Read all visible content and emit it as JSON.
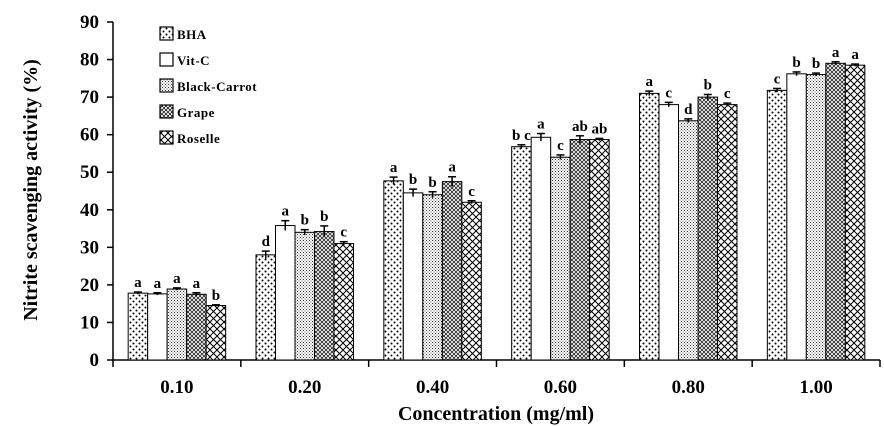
{
  "chart_data": {
    "type": "bar",
    "title": "",
    "xlabel": "Concentration (mg/ml)",
    "ylabel": "Nitrite scavenging activity (%)",
    "ylim": [
      0,
      90
    ],
    "yticks": [
      "0",
      "10",
      "20",
      "30",
      "40",
      "50",
      "60",
      "70",
      "80",
      "90"
    ],
    "categories": [
      "0.10",
      "0.20",
      "0.40",
      "0.60",
      "0.80",
      "1.00"
    ],
    "legend_position": "top-left",
    "series": [
      {
        "name": "BHA",
        "pattern": "dots",
        "values": [
          17.8,
          28.0,
          47.7,
          56.8,
          71.0,
          71.8
        ],
        "errors": [
          0.3,
          1.0,
          1.0,
          0.5,
          0.6,
          0.5
        ],
        "labels": [
          "a",
          "d",
          "a",
          "b c",
          "a",
          "c"
        ]
      },
      {
        "name": "Vit-C",
        "pattern": "blank",
        "values": [
          17.6,
          35.8,
          44.5,
          59.3,
          68.0,
          76.2
        ],
        "errors": [
          0.3,
          1.3,
          1.0,
          1.0,
          0.6,
          0.5
        ],
        "labels": [
          "a",
          "a",
          "b",
          "a",
          "c",
          "b"
        ]
      },
      {
        "name": "Black-Carrot",
        "pattern": "grid",
        "values": [
          18.9,
          34.0,
          44.0,
          54.0,
          63.7,
          76.0
        ],
        "errors": [
          0.3,
          0.7,
          0.8,
          0.6,
          0.5,
          0.4
        ],
        "labels": [
          "a",
          "b",
          "b",
          "c",
          "d",
          "b"
        ]
      },
      {
        "name": "Grape",
        "pattern": "crosshatch",
        "values": [
          17.5,
          34.2,
          47.5,
          58.7,
          70.0,
          79.0
        ],
        "errors": [
          0.4,
          1.5,
          1.3,
          1.0,
          0.7,
          0.4
        ],
        "labels": [
          "a",
          "b",
          "a",
          "ab",
          "b",
          "a"
        ]
      },
      {
        "name": "Roselle",
        "pattern": "diagonal",
        "values": [
          14.5,
          31.0,
          42.0,
          58.7,
          68.0,
          78.5
        ],
        "errors": [
          0.2,
          0.5,
          0.4,
          0.3,
          0.4,
          0.3
        ],
        "labels": [
          "b",
          "c",
          "c",
          "ab",
          "c",
          "a"
        ]
      }
    ]
  }
}
